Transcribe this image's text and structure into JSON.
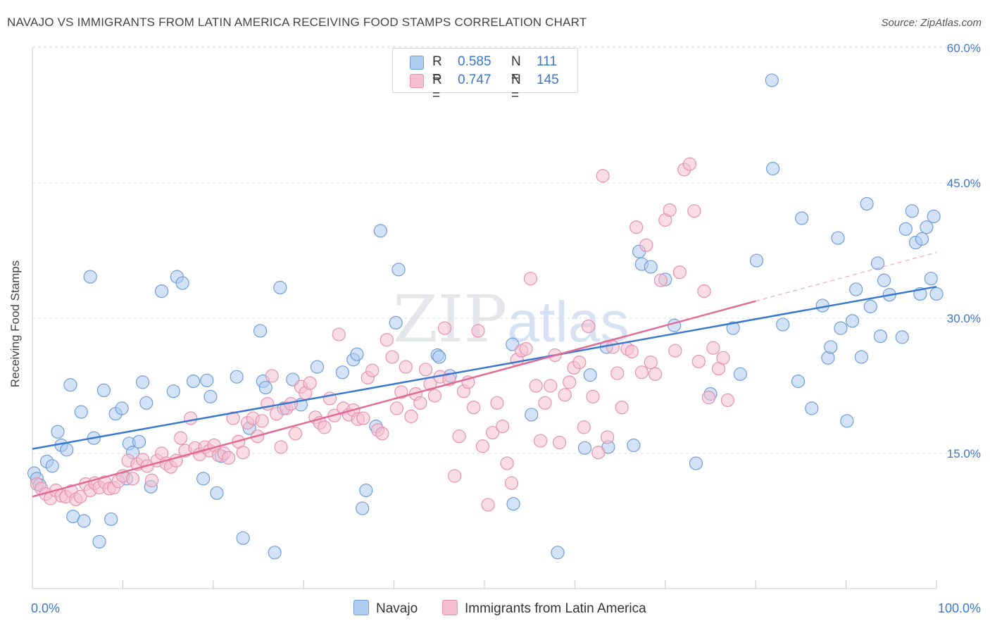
{
  "title": "NAVAJO VS IMMIGRANTS FROM LATIN AMERICA RECEIVING FOOD STAMPS CORRELATION CHART",
  "source": "Source: ZipAtlas.com",
  "watermark": {
    "part1": "ZIP",
    "part2": "atlas"
  },
  "legend": {
    "navajo": {
      "r_label": "R =",
      "r_value": "0.585",
      "n_label": "N =",
      "n_value": "111"
    },
    "latin": {
      "r_label": "R =",
      "r_value": "0.747",
      "n_label": "N =",
      "n_value": "145"
    }
  },
  "colors": {
    "navajo_fill": "#aecbf0",
    "navajo_stroke": "#6f9fd8",
    "navajo_line": "#3a78d0",
    "latin_fill": "#f6bfd0",
    "latin_stroke": "#e592b0",
    "latin_line": "#e26a96",
    "tick_label": "#3a78d0",
    "grid": "#dddddd"
  },
  "chart_data": {
    "type": "scatter",
    "title": "NAVAJO VS IMMIGRANTS FROM LATIN AMERICA RECEIVING FOOD STAMPS CORRELATION CHART",
    "xlabel": "",
    "ylabel": "Receiving Food Stamps",
    "xlim": [
      0,
      100
    ],
    "ylim": [
      0,
      60
    ],
    "x_tick_labels": [
      "0.0%",
      "100.0%"
    ],
    "y_ticks": [
      15,
      30,
      45,
      60
    ],
    "y_tick_labels": [
      "15.0%",
      "30.0%",
      "45.0%",
      "60.0%"
    ],
    "grid": true,
    "legend_position": "top-center",
    "series": [
      {
        "name": "Navajo",
        "trend": {
          "x": [
            0,
            100
          ],
          "y": [
            15.5,
            33.5
          ]
        },
        "points": [
          [
            0.2,
            12.8
          ],
          [
            0.5,
            12.2
          ],
          [
            0.8,
            11.5
          ],
          [
            1.6,
            14.1
          ],
          [
            2.2,
            13.6
          ],
          [
            2.8,
            17.4
          ],
          [
            3.2,
            15.9
          ],
          [
            3.8,
            15.4
          ],
          [
            4.2,
            22.6
          ],
          [
            4.5,
            8.0
          ],
          [
            5.4,
            19.6
          ],
          [
            5.7,
            7.5
          ],
          [
            6.4,
            34.6
          ],
          [
            6.8,
            16.7
          ],
          [
            7.4,
            5.2
          ],
          [
            7.9,
            22.0
          ],
          [
            8.7,
            7.7
          ],
          [
            9.2,
            19.4
          ],
          [
            9.9,
            20.0
          ],
          [
            10.4,
            12.2
          ],
          [
            10.7,
            16.1
          ],
          [
            11.1,
            15.1
          ],
          [
            11.8,
            16.3
          ],
          [
            12.2,
            22.9
          ],
          [
            12.6,
            20.6
          ],
          [
            13.1,
            11.3
          ],
          [
            14.3,
            33.0
          ],
          [
            15.6,
            21.9
          ],
          [
            16.0,
            34.6
          ],
          [
            16.6,
            33.9
          ],
          [
            17.8,
            23.0
          ],
          [
            18.9,
            12.2
          ],
          [
            19.3,
            23.1
          ],
          [
            19.7,
            21.3
          ],
          [
            20.4,
            10.6
          ],
          [
            20.9,
            14.7
          ],
          [
            22.6,
            23.5
          ],
          [
            23.3,
            5.6
          ],
          [
            24.0,
            17.8
          ],
          [
            25.2,
            28.6
          ],
          [
            25.5,
            23.0
          ],
          [
            25.8,
            22.3
          ],
          [
            26.8,
            4.0
          ],
          [
            27.4,
            33.4
          ],
          [
            27.8,
            20.0
          ],
          [
            28.8,
            23.2
          ],
          [
            29.7,
            20.4
          ],
          [
            31.5,
            24.6
          ],
          [
            34.3,
            24.0
          ],
          [
            35.5,
            25.4
          ],
          [
            35.9,
            26.0
          ],
          [
            36.5,
            8.9
          ],
          [
            36.9,
            10.9
          ],
          [
            38.0,
            18.0
          ],
          [
            38.5,
            39.7
          ],
          [
            40.2,
            29.5
          ],
          [
            40.5,
            35.4
          ],
          [
            44.8,
            25.9
          ],
          [
            45.0,
            25.7
          ],
          [
            46.2,
            23.6
          ],
          [
            53.1,
            27.1
          ],
          [
            53.2,
            9.4
          ],
          [
            55.2,
            19.3
          ],
          [
            58.1,
            4.0
          ],
          [
            61.1,
            15.6
          ],
          [
            61.7,
            23.7
          ],
          [
            63.5,
            26.8
          ],
          [
            63.7,
            15.7
          ],
          [
            66.5,
            15.9
          ],
          [
            67.1,
            37.4
          ],
          [
            67.4,
            36.0
          ],
          [
            68.4,
            35.7
          ],
          [
            70.0,
            34.3
          ],
          [
            71.0,
            29.2
          ],
          [
            73.4,
            13.9
          ],
          [
            75.0,
            21.6
          ],
          [
            77.5,
            28.9
          ],
          [
            78.3,
            23.8
          ],
          [
            80.1,
            36.4
          ],
          [
            81.8,
            56.4
          ],
          [
            81.9,
            46.6
          ],
          [
            83.0,
            29.3
          ],
          [
            84.7,
            23.0
          ],
          [
            85.1,
            41.1
          ],
          [
            86.2,
            20.0
          ],
          [
            87.4,
            31.4
          ],
          [
            88.0,
            25.6
          ],
          [
            88.3,
            26.8
          ],
          [
            89.1,
            38.9
          ],
          [
            89.4,
            28.9
          ],
          [
            90.1,
            18.6
          ],
          [
            90.7,
            29.7
          ],
          [
            91.1,
            33.2
          ],
          [
            91.7,
            25.7
          ],
          [
            92.3,
            42.7
          ],
          [
            92.7,
            31.3
          ],
          [
            93.5,
            36.1
          ],
          [
            93.8,
            28.0
          ],
          [
            94.2,
            34.2
          ],
          [
            94.8,
            32.6
          ],
          [
            96.2,
            27.9
          ],
          [
            96.6,
            39.9
          ],
          [
            97.3,
            41.9
          ],
          [
            97.7,
            38.4
          ],
          [
            98.2,
            32.7
          ],
          [
            98.4,
            38.8
          ],
          [
            98.9,
            40.1
          ],
          [
            99.4,
            34.4
          ],
          [
            99.7,
            41.3
          ],
          [
            100.0,
            32.7
          ]
        ]
      },
      {
        "name": "Immigrants from Latin America",
        "trend": {
          "x": [
            0,
            80
          ],
          "y": [
            10.2,
            31.9
          ]
        },
        "trend_dashed": {
          "x": [
            80,
            100
          ],
          "y": [
            31.9,
            37.3
          ]
        },
        "points": [
          [
            0.5,
            11.6
          ],
          [
            1.0,
            11.1
          ],
          [
            1.5,
            10.5
          ],
          [
            2.0,
            10.0
          ],
          [
            2.6,
            10.9
          ],
          [
            3.2,
            10.3
          ],
          [
            3.7,
            10.2
          ],
          [
            4.3,
            10.8
          ],
          [
            4.8,
            9.9
          ],
          [
            5.3,
            10.2
          ],
          [
            5.9,
            11.6
          ],
          [
            6.4,
            10.9
          ],
          [
            6.9,
            11.7
          ],
          [
            7.4,
            11.2
          ],
          [
            8.0,
            11.8
          ],
          [
            8.5,
            11.1
          ],
          [
            9.0,
            11.2
          ],
          [
            9.5,
            11.9
          ],
          [
            10.0,
            12.5
          ],
          [
            10.6,
            14.2
          ],
          [
            11.1,
            12.2
          ],
          [
            11.6,
            13.8
          ],
          [
            12.2,
            14.3
          ],
          [
            12.7,
            13.6
          ],
          [
            13.2,
            12.0
          ],
          [
            13.8,
            14.2
          ],
          [
            14.3,
            15.0
          ],
          [
            14.8,
            13.9
          ],
          [
            15.3,
            13.5
          ],
          [
            15.9,
            14.2
          ],
          [
            16.4,
            16.7
          ],
          [
            16.9,
            15.3
          ],
          [
            17.5,
            18.9
          ],
          [
            18.0,
            15.6
          ],
          [
            18.5,
            14.9
          ],
          [
            19.1,
            15.7
          ],
          [
            19.6,
            15.3
          ],
          [
            20.1,
            15.9
          ],
          [
            20.6,
            14.8
          ],
          [
            21.2,
            15.0
          ],
          [
            21.7,
            14.5
          ],
          [
            22.2,
            18.9
          ],
          [
            22.8,
            16.3
          ],
          [
            23.3,
            15.1
          ],
          [
            23.8,
            18.4
          ],
          [
            24.4,
            18.9
          ],
          [
            24.9,
            16.9
          ],
          [
            25.4,
            18.6
          ],
          [
            26.0,
            20.5
          ],
          [
            26.5,
            23.6
          ],
          [
            27.0,
            19.4
          ],
          [
            27.5,
            15.7
          ],
          [
            28.1,
            20.0
          ],
          [
            28.6,
            20.5
          ],
          [
            29.1,
            17.2
          ],
          [
            29.7,
            22.4
          ],
          [
            30.2,
            21.7
          ],
          [
            30.7,
            22.8
          ],
          [
            31.3,
            19.0
          ],
          [
            31.8,
            18.4
          ],
          [
            32.3,
            17.9
          ],
          [
            32.9,
            21.1
          ],
          [
            33.4,
            19.2
          ],
          [
            33.9,
            28.2
          ],
          [
            34.4,
            20.0
          ],
          [
            35.0,
            19.3
          ],
          [
            35.5,
            19.8
          ],
          [
            36.0,
            18.8
          ],
          [
            36.6,
            18.9
          ],
          [
            37.1,
            23.4
          ],
          [
            37.6,
            24.2
          ],
          [
            38.2,
            17.6
          ],
          [
            38.7,
            17.2
          ],
          [
            39.2,
            27.6
          ],
          [
            39.8,
            25.7
          ],
          [
            40.3,
            20.0
          ],
          [
            40.8,
            21.8
          ],
          [
            41.3,
            24.6
          ],
          [
            41.9,
            19.1
          ],
          [
            42.4,
            21.6
          ],
          [
            42.9,
            20.6
          ],
          [
            43.5,
            24.3
          ],
          [
            44.0,
            22.7
          ],
          [
            44.5,
            21.4
          ],
          [
            45.1,
            23.5
          ],
          [
            45.6,
            28.9
          ],
          [
            46.1,
            23.2
          ],
          [
            46.7,
            12.5
          ],
          [
            47.2,
            16.9
          ],
          [
            47.7,
            21.9
          ],
          [
            48.2,
            22.9
          ],
          [
            48.8,
            20.1
          ],
          [
            49.3,
            28.6
          ],
          [
            49.8,
            15.8
          ],
          [
            50.4,
            9.3
          ],
          [
            50.9,
            17.3
          ],
          [
            51.4,
            20.6
          ],
          [
            52.0,
            18.0
          ],
          [
            52.5,
            13.9
          ],
          [
            53.0,
            11.7
          ],
          [
            53.6,
            25.4
          ],
          [
            54.1,
            26.4
          ],
          [
            54.6,
            26.6
          ],
          [
            55.1,
            34.4
          ],
          [
            55.7,
            22.5
          ],
          [
            56.2,
            16.4
          ],
          [
            56.7,
            20.6
          ],
          [
            57.3,
            22.5
          ],
          [
            57.8,
            25.9
          ],
          [
            58.3,
            16.2
          ],
          [
            58.9,
            21.5
          ],
          [
            59.4,
            22.9
          ],
          [
            59.9,
            24.5
          ],
          [
            60.5,
            25.1
          ],
          [
            61.0,
            17.9
          ],
          [
            61.5,
            29.1
          ],
          [
            62.0,
            21.3
          ],
          [
            62.6,
            15.1
          ],
          [
            63.1,
            45.8
          ],
          [
            63.6,
            16.8
          ],
          [
            64.2,
            26.8
          ],
          [
            64.7,
            23.9
          ],
          [
            65.2,
            20.1
          ],
          [
            65.8,
            26.6
          ],
          [
            66.3,
            26.3
          ],
          [
            66.8,
            40.1
          ],
          [
            67.4,
            24.0
          ],
          [
            67.9,
            38.1
          ],
          [
            68.4,
            25.1
          ],
          [
            68.9,
            23.8
          ],
          [
            69.5,
            34.2
          ],
          [
            70.0,
            40.9
          ],
          [
            70.5,
            42.0
          ],
          [
            71.1,
            26.4
          ],
          [
            71.6,
            35.1
          ],
          [
            72.1,
            46.5
          ],
          [
            72.7,
            47.1
          ],
          [
            73.2,
            41.9
          ],
          [
            73.7,
            25.2
          ],
          [
            74.3,
            33.0
          ],
          [
            74.8,
            21.2
          ],
          [
            75.3,
            26.7
          ],
          [
            75.9,
            24.4
          ],
          [
            76.4,
            25.6
          ],
          [
            76.9,
            20.9
          ]
        ]
      }
    ]
  }
}
